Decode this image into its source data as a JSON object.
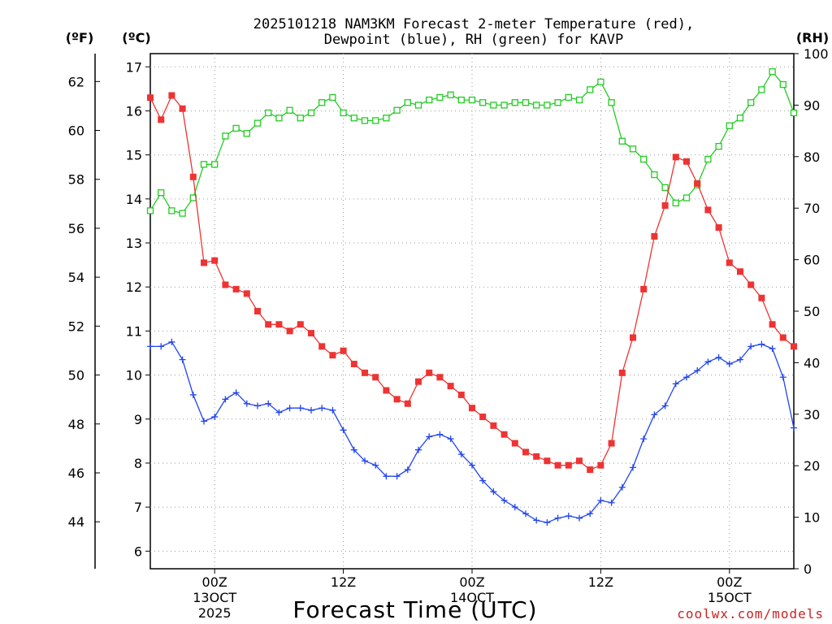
{
  "chart_data": {
    "type": "line",
    "title_line1": "2025101218 NAM3KM Forecast 2-meter Temperature (red),",
    "title_line2": "Dewpoint (blue), RH (green) for KAVP",
    "xlabel": "Forecast Time (UTC)",
    "credit": "coolwx.com/models",
    "left_axis_f": {
      "label": "(ºF)",
      "ticks": [
        "44",
        "46",
        "48",
        "50",
        "52",
        "54",
        "56",
        "58",
        "60",
        "62"
      ]
    },
    "left_axis_c": {
      "label": "(ºC)",
      "ylim": [
        5.6,
        17.3
      ],
      "ticks": [
        "6",
        "7",
        "8",
        "9",
        "10",
        "11",
        "12",
        "13",
        "14",
        "15",
        "16",
        "17"
      ]
    },
    "right_axis": {
      "label": "(RH)",
      "ylim": [
        0,
        100
      ],
      "ticks": [
        "0",
        "10",
        "20",
        "30",
        "40",
        "50",
        "60",
        "70",
        "80",
        "90",
        "100"
      ]
    },
    "x_ticks": [
      {
        "hour": 6,
        "label": "00Z",
        "date": "13OCT",
        "year": "2025"
      },
      {
        "hour": 18,
        "label": "12Z",
        "date": "",
        "year": ""
      },
      {
        "hour": 30,
        "label": "00Z",
        "date": "14OCT",
        "year": ""
      },
      {
        "hour": 42,
        "label": "12Z",
        "date": "",
        "year": ""
      },
      {
        "hour": 54,
        "label": "00Z",
        "date": "15OCT",
        "year": ""
      }
    ],
    "x": [
      0,
      1,
      2,
      3,
      4,
      5,
      6,
      7,
      8,
      9,
      10,
      11,
      12,
      13,
      14,
      15,
      16,
      17,
      18,
      19,
      20,
      21,
      22,
      23,
      24,
      25,
      26,
      27,
      28,
      29,
      30,
      31,
      32,
      33,
      34,
      35,
      36,
      37,
      38,
      39,
      40,
      41,
      42,
      43,
      44,
      45,
      46,
      47,
      48,
      49,
      50,
      51,
      52,
      53,
      54,
      55,
      56,
      57,
      58,
      59,
      60
    ],
    "xlim": [
      0,
      60
    ],
    "series": [
      {
        "name": "2-meter Temperature",
        "color": "#ee3333",
        "axis": "C",
        "marker": "filled-square",
        "values": [
          16.3,
          15.8,
          16.35,
          16.05,
          14.5,
          12.55,
          12.6,
          12.05,
          11.95,
          11.85,
          11.45,
          11.15,
          11.15,
          11.0,
          11.15,
          10.95,
          10.65,
          10.45,
          10.55,
          10.25,
          10.05,
          9.95,
          9.65,
          9.45,
          9.35,
          9.85,
          10.05,
          9.95,
          9.75,
          9.55,
          9.25,
          9.05,
          8.85,
          8.65,
          8.45,
          8.25,
          8.15,
          8.05,
          7.95,
          7.95,
          8.05,
          7.85,
          7.95,
          8.45,
          10.05,
          10.85,
          11.95,
          13.15,
          13.85,
          14.95,
          14.85,
          14.35,
          13.75,
          13.35,
          12.55,
          12.35,
          12.05,
          11.75,
          11.15,
          10.85,
          10.65
        ]
      },
      {
        "name": "Dewpoint",
        "color": "#2244ee",
        "axis": "C",
        "marker": "plus",
        "values": [
          10.65,
          10.65,
          10.75,
          10.35,
          9.55,
          8.95,
          9.05,
          9.45,
          9.6,
          9.35,
          9.3,
          9.35,
          9.15,
          9.25,
          9.25,
          9.2,
          9.25,
          9.2,
          8.75,
          8.3,
          8.05,
          7.95,
          7.7,
          7.7,
          7.85,
          8.3,
          8.6,
          8.65,
          8.55,
          8.2,
          7.95,
          7.6,
          7.35,
          7.15,
          7.0,
          6.85,
          6.7,
          6.65,
          6.75,
          6.8,
          6.75,
          6.85,
          7.15,
          7.1,
          7.45,
          7.9,
          8.55,
          9.1,
          9.3,
          9.8,
          9.95,
          10.1,
          10.3,
          10.4,
          10.25,
          10.35,
          10.65,
          10.7,
          10.6,
          9.95,
          8.8
        ]
      },
      {
        "name": "RH",
        "color": "#22cc22",
        "axis": "RH",
        "marker": "open-square",
        "values": [
          69.5,
          73,
          69.5,
          69,
          72,
          78.5,
          78.5,
          84,
          85.5,
          84.5,
          86.5,
          88.5,
          87.5,
          89,
          87.5,
          88.5,
          90.5,
          91.5,
          88.5,
          87.5,
          87,
          87,
          87.5,
          89,
          90.5,
          90,
          91,
          91.5,
          92,
          91,
          91,
          90.5,
          90,
          90,
          90.5,
          90.5,
          90,
          90,
          90.5,
          91.5,
          91,
          93,
          94.5,
          90.5,
          83,
          81.5,
          79.5,
          76.5,
          74,
          71,
          72,
          74.5,
          79.5,
          82,
          86,
          87.5,
          90.5,
          93,
          96.5,
          94,
          88.5
        ]
      }
    ]
  }
}
